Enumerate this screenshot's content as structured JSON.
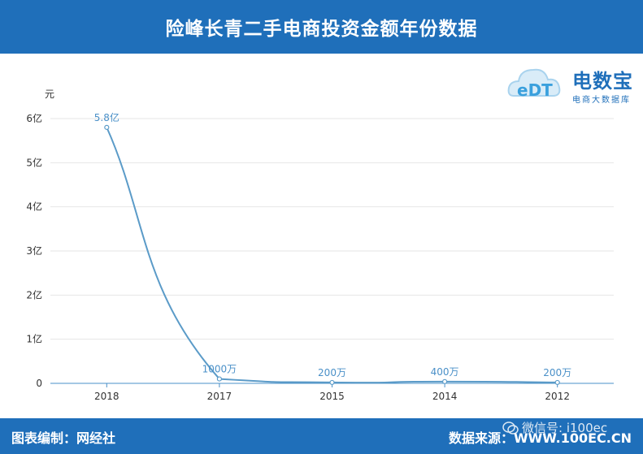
{
  "header": {
    "title": "险峰长青二手电商投资金额年份数据"
  },
  "footer": {
    "left": "图表编制：网经社",
    "right": "数据来源：WWW.100EC.CN",
    "watermark": "微信号: i100ec"
  },
  "logo": {
    "brand": "电数宝",
    "subtitle": "电商大数据库",
    "mark": "eDT"
  },
  "colors": {
    "header_bg": "#1f6fba",
    "line": "#5b9bc8",
    "label": "#4a90c8"
  },
  "chart_data": {
    "type": "line",
    "ylabel": "元",
    "categories": [
      "2018",
      "2017",
      "2015",
      "2014",
      "2012"
    ],
    "values": [
      580000000,
      10000000,
      2000000,
      4000000,
      2000000
    ],
    "data_labels": [
      "5.8亿",
      "1000万",
      "200万",
      "400万",
      "200万"
    ],
    "ylim": [
      0,
      600000000
    ],
    "yticks": [
      0,
      100000000,
      200000000,
      300000000,
      400000000,
      500000000,
      600000000
    ],
    "ytick_labels": [
      "0",
      "1亿",
      "2亿",
      "3亿",
      "4亿",
      "5亿",
      "6亿"
    ],
    "grid": true,
    "smooth": true
  }
}
